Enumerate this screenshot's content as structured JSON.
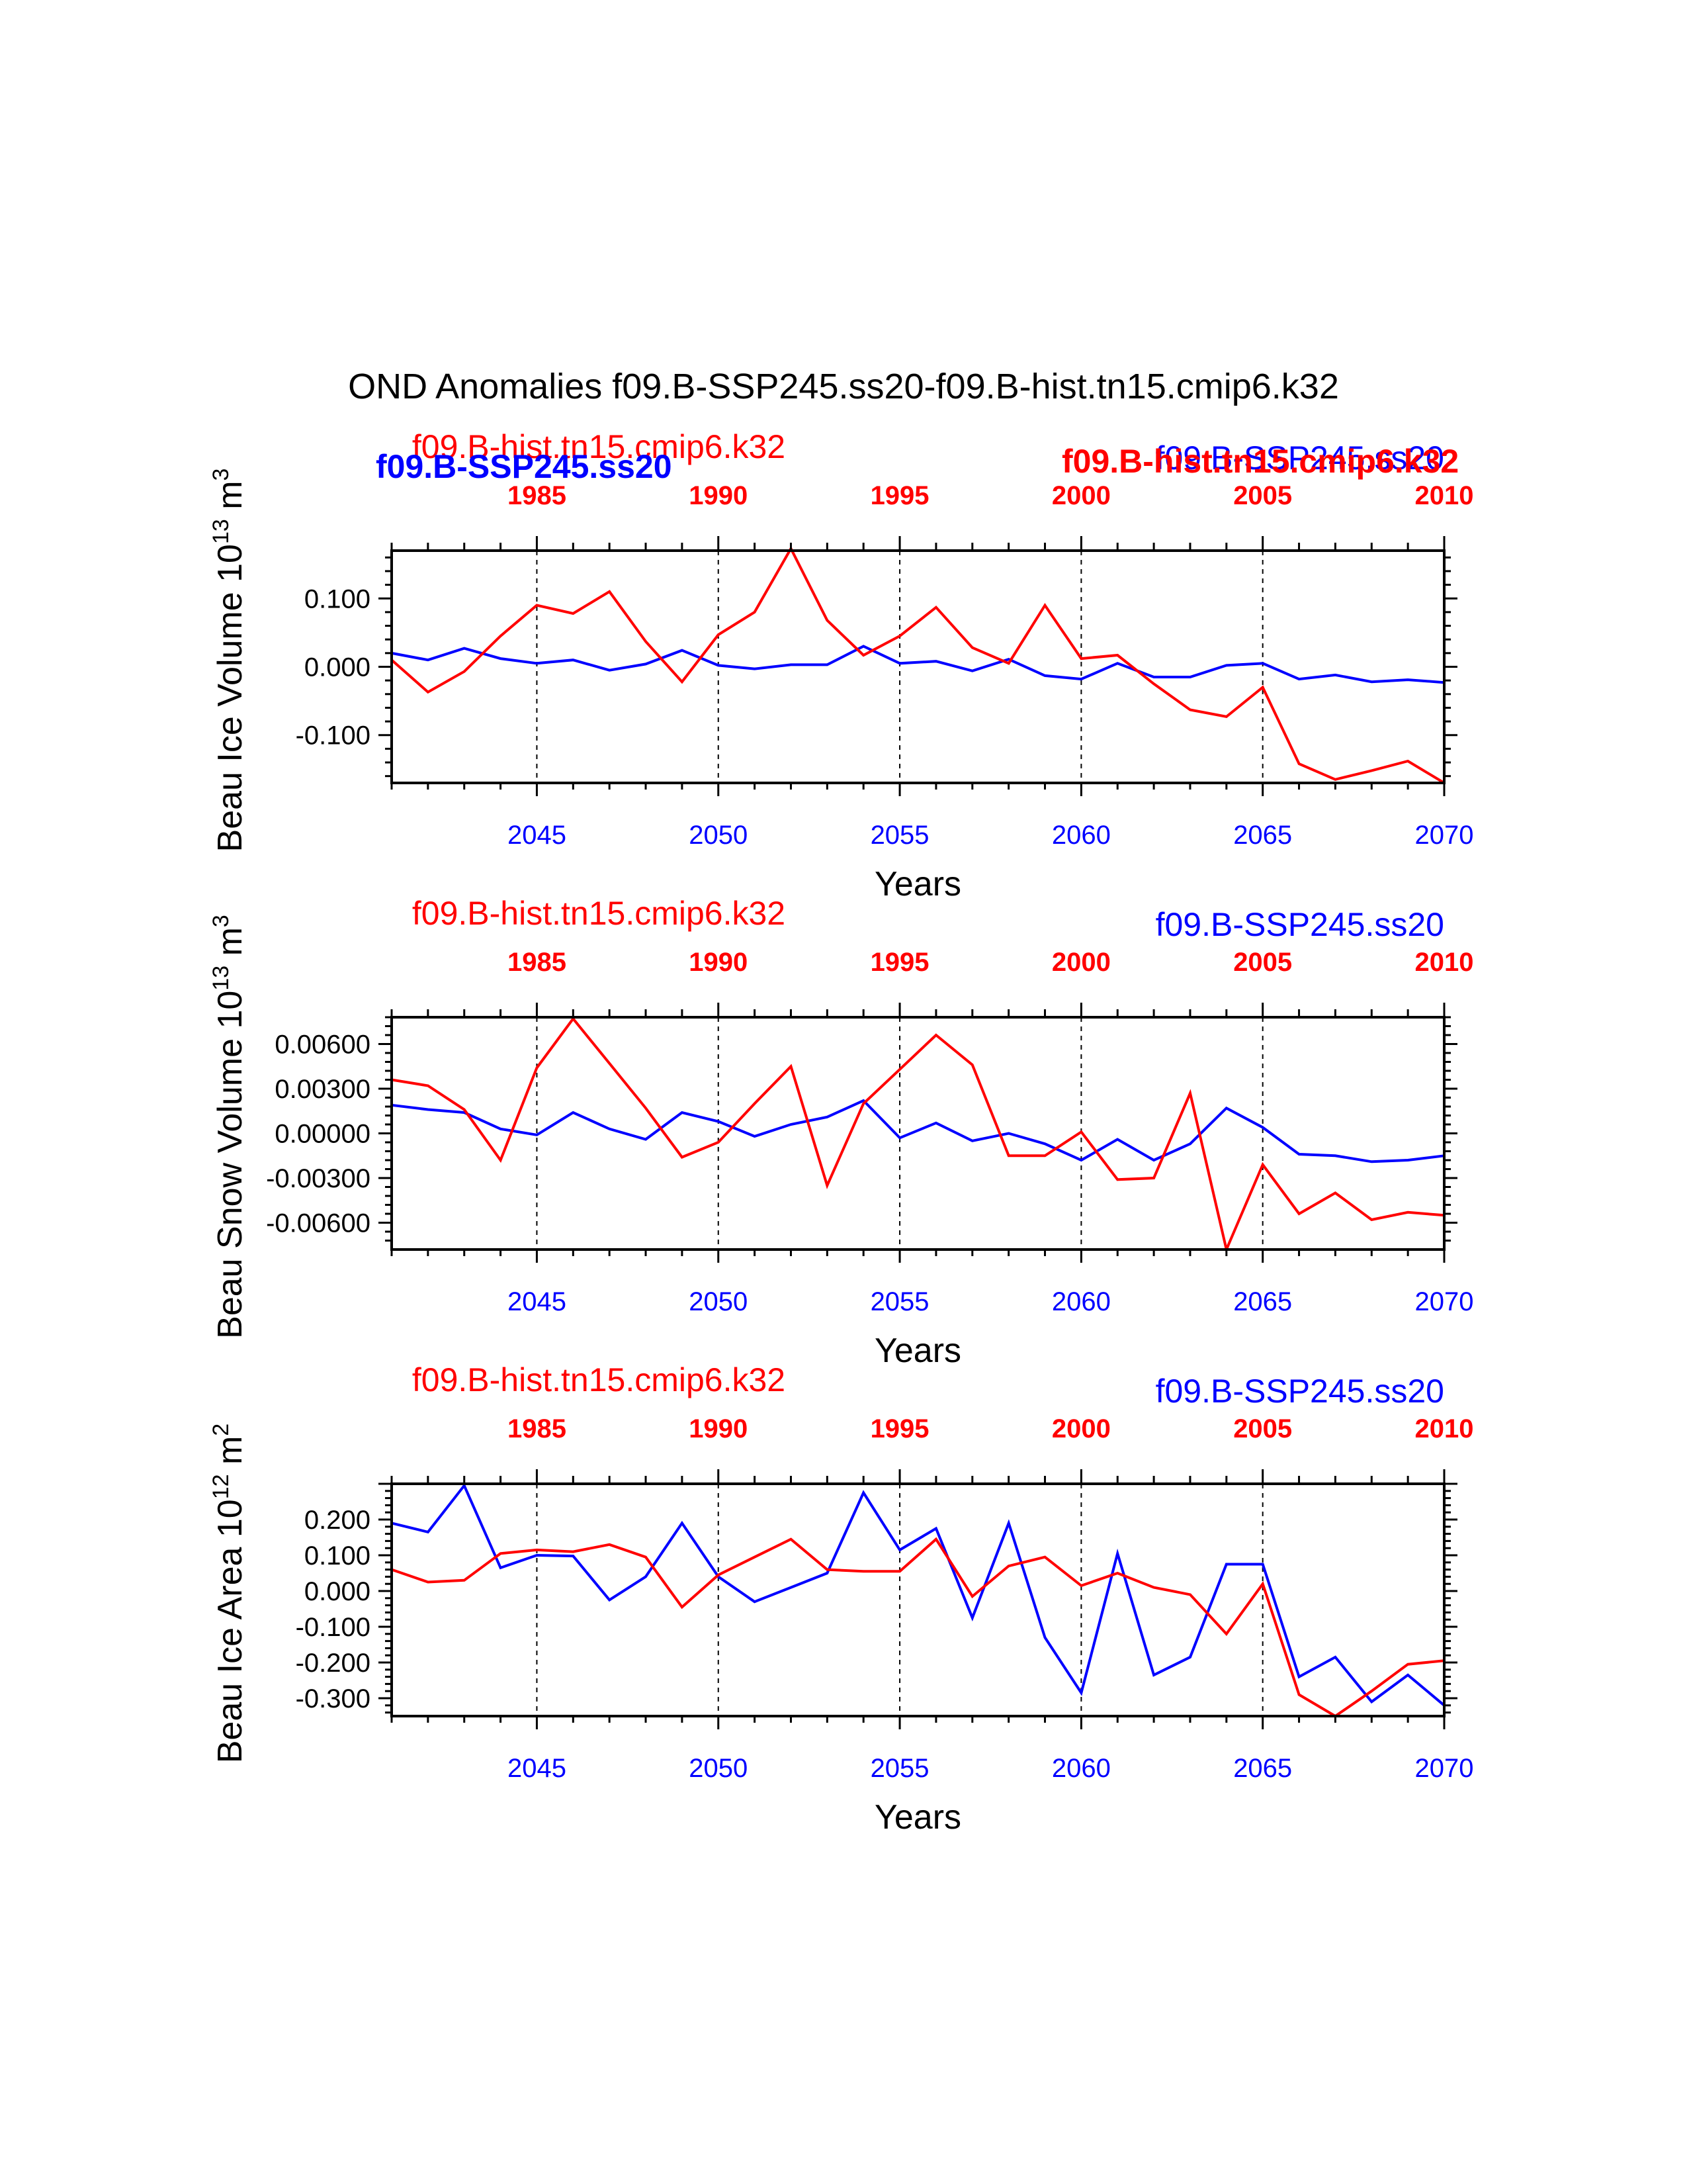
{
  "figure_title": "OND Anomalies f09.B-SSP245.ss20-f09.B-hist.tn15.cmip6.k32",
  "colors": {
    "ssp": "#0000ff",
    "hist": "#ff0000",
    "axis": "#000000"
  },
  "overlay_labels": {
    "top_left_bold_blue": "f09.B-SSP245.ss20",
    "top_right_bold_red": "f09.B-hist.tn15.cmip6.k32"
  },
  "chart_data": [
    {
      "type": "line",
      "panel": "ice-volume",
      "ylabel": "Beau Ice Volume 10",
      "ylabel_exp": "13",
      "ylabel_unit": " m",
      "ylabel_unit_exp": "3",
      "xlabel": "Years",
      "ylim": [
        -0.17,
        0.17
      ],
      "yticks": [
        -0.1,
        0.0,
        0.1
      ],
      "ytick_labels": [
        "-0.100",
        "0.000",
        "0.100"
      ],
      "x_bottom": {
        "range": [
          2041,
          2070
        ],
        "ticks": [
          2045,
          2050,
          2055,
          2060,
          2065,
          2070
        ],
        "labels": [
          "2045",
          "2050",
          "2055",
          "2060",
          "2065",
          "2070"
        ]
      },
      "x_top": {
        "range": [
          1981,
          2010
        ],
        "ticks": [
          1985,
          1990,
          1995,
          2000,
          2005,
          2010
        ],
        "labels": [
          "1985",
          "1990",
          "1995",
          "2000",
          "2005",
          "2010"
        ]
      },
      "gridlines_x": [
        2045,
        2050,
        2055,
        2060,
        2065
      ],
      "series": [
        {
          "name": "f09.B-SSP245.ss20",
          "color": "#0000ff",
          "x": [
            2041,
            2042,
            2043,
            2044,
            2045,
            2046,
            2047,
            2048,
            2049,
            2050,
            2051,
            2052,
            2053,
            2054,
            2055,
            2056,
            2057,
            2058,
            2059,
            2060,
            2061,
            2062,
            2063,
            2064,
            2065,
            2066,
            2067,
            2068,
            2069,
            2070
          ],
          "values": [
            0.02,
            0.01,
            0.027,
            0.012,
            0.005,
            0.01,
            -0.005,
            0.004,
            0.024,
            0.002,
            -0.003,
            0.003,
            0.003,
            0.03,
            0.005,
            0.008,
            -0.006,
            0.011,
            -0.013,
            -0.018,
            0.005,
            -0.015,
            -0.015,
            0.002,
            0.005,
            -0.018,
            -0.012,
            -0.022,
            -0.019,
            -0.023
          ]
        },
        {
          "name": "f09.B-hist.tn15.cmip6.k32",
          "color": "#ff0000",
          "x": [
            2041,
            2042,
            2043,
            2044,
            2045,
            2046,
            2047,
            2048,
            2049,
            2050,
            2051,
            2052,
            2053,
            2054,
            2055,
            2056,
            2057,
            2058,
            2059,
            2060,
            2061,
            2062,
            2063,
            2064,
            2065,
            2066,
            2067,
            2068,
            2069,
            2070
          ],
          "values": [
            0.01,
            -0.037,
            -0.007,
            0.045,
            0.09,
            0.078,
            0.11,
            0.037,
            -0.022,
            0.047,
            0.08,
            0.173,
            0.068,
            0.017,
            0.045,
            0.087,
            0.028,
            0.005,
            0.09,
            0.012,
            0.017,
            -0.025,
            -0.063,
            -0.073,
            -0.03,
            -0.142,
            -0.165,
            -0.152,
            -0.138,
            -0.17
          ]
        }
      ],
      "legend_left": "f09.B-hist.tn15.cmip6.k32",
      "legend_right": "f09.B-SSP245.ss20"
    },
    {
      "type": "line",
      "panel": "snow-volume",
      "ylabel": "Beau Snow Volume 10",
      "ylabel_exp": "13",
      "ylabel_unit": " m",
      "ylabel_unit_exp": "3",
      "xlabel": "Years",
      "ylim": [
        -0.0078,
        0.0078
      ],
      "yticks": [
        -0.006,
        -0.003,
        0.0,
        0.003,
        0.006
      ],
      "ytick_labels": [
        "-0.00600",
        "-0.00300",
        "0.00000",
        "0.00300",
        "0.00600"
      ],
      "x_bottom": {
        "range": [
          2041,
          2070
        ],
        "ticks": [
          2045,
          2050,
          2055,
          2060,
          2065,
          2070
        ],
        "labels": [
          "2045",
          "2050",
          "2055",
          "2060",
          "2065",
          "2070"
        ]
      },
      "x_top": {
        "range": [
          1981,
          2010
        ],
        "ticks": [
          1985,
          1990,
          1995,
          2000,
          2005,
          2010
        ],
        "labels": [
          "1985",
          "1990",
          "1995",
          "2000",
          "2005",
          "2010"
        ]
      },
      "gridlines_x": [
        2045,
        2050,
        2055,
        2060,
        2065
      ],
      "series": [
        {
          "name": "f09.B-SSP245.ss20",
          "color": "#0000ff",
          "x": [
            2041,
            2042,
            2043,
            2044,
            2045,
            2046,
            2047,
            2048,
            2049,
            2050,
            2051,
            2052,
            2053,
            2054,
            2055,
            2056,
            2057,
            2058,
            2059,
            2060,
            2061,
            2062,
            2063,
            2064,
            2065,
            2066,
            2067,
            2068,
            2069,
            2070
          ],
          "values": [
            0.0019,
            0.0016,
            0.0014,
            0.0003,
            -0.0001,
            0.0014,
            0.0003,
            -0.0004,
            0.0014,
            0.0008,
            -0.0002,
            0.0006,
            0.0011,
            0.0022,
            -0.0003,
            0.0007,
            -0.0005,
            0.0,
            -0.0007,
            -0.0018,
            -0.0004,
            -0.0018,
            -0.0007,
            0.0017,
            0.0004,
            -0.0014,
            -0.0015,
            -0.0019,
            -0.0018,
            -0.0015
          ]
        },
        {
          "name": "f09.B-hist.tn15.cmip6.k32",
          "color": "#ff0000",
          "x": [
            2041,
            2042,
            2043,
            2044,
            2045,
            2046,
            2047,
            2048,
            2049,
            2050,
            2051,
            2052,
            2053,
            2054,
            2055,
            2056,
            2057,
            2058,
            2059,
            2060,
            2061,
            2062,
            2063,
            2064,
            2065,
            2066,
            2067,
            2068,
            2069,
            2070
          ],
          "values": [
            0.0036,
            0.0032,
            0.0016,
            -0.0018,
            0.0044,
            0.0077,
            0.0047,
            0.0017,
            -0.0016,
            -0.0006,
            0.002,
            0.0045,
            -0.0035,
            0.002,
            0.0043,
            0.0066,
            0.0046,
            -0.0015,
            -0.0015,
            0.0001,
            -0.0031,
            -0.003,
            0.0027,
            -0.0078,
            -0.0021,
            -0.0054,
            -0.004,
            -0.0058,
            -0.0053,
            -0.0055
          ]
        }
      ],
      "legend_left": "f09.B-hist.tn15.cmip6.k32",
      "legend_right": "f09.B-SSP245.ss20"
    },
    {
      "type": "line",
      "panel": "ice-area",
      "ylabel": "Beau Ice Area 10",
      "ylabel_exp": "12",
      "ylabel_unit": " m",
      "ylabel_unit_exp": "2",
      "xlabel": "Years",
      "ylim": [
        -0.35,
        0.3
      ],
      "yticks": [
        -0.3,
        -0.2,
        -0.1,
        0.0,
        0.1,
        0.2
      ],
      "ytick_labels": [
        "-0.300",
        "-0.200",
        "-0.100",
        "0.000",
        "0.100",
        "0.200"
      ],
      "x_bottom": {
        "range": [
          2041,
          2070
        ],
        "ticks": [
          2045,
          2050,
          2055,
          2060,
          2065,
          2070
        ],
        "labels": [
          "2045",
          "2050",
          "2055",
          "2060",
          "2065",
          "2070"
        ]
      },
      "x_top": {
        "range": [
          1981,
          2010
        ],
        "ticks": [
          1985,
          1990,
          1995,
          2000,
          2005,
          2010
        ],
        "labels": [
          "1985",
          "1990",
          "1995",
          "2000",
          "2005",
          "2010"
        ]
      },
      "gridlines_x": [
        2045,
        2050,
        2055,
        2060,
        2065
      ],
      "series": [
        {
          "name": "f09.B-SSP245.ss20",
          "color": "#0000ff",
          "x": [
            2041,
            2042,
            2043,
            2044,
            2045,
            2046,
            2047,
            2048,
            2049,
            2050,
            2051,
            2052,
            2053,
            2054,
            2055,
            2056,
            2057,
            2058,
            2059,
            2060,
            2061,
            2062,
            2063,
            2064,
            2065,
            2066,
            2067,
            2068,
            2069,
            2070
          ],
          "values": [
            0.19,
            0.165,
            0.295,
            0.065,
            0.1,
            0.098,
            -0.025,
            0.04,
            0.19,
            0.04,
            -0.03,
            0.01,
            0.05,
            0.275,
            0.115,
            0.175,
            -0.075,
            0.19,
            -0.13,
            -0.285,
            0.105,
            -0.235,
            -0.185,
            0.075,
            0.075,
            -0.24,
            -0.185,
            -0.31,
            -0.235,
            -0.32
          ]
        },
        {
          "name": "f09.B-hist.tn15.cmip6.k32",
          "color": "#ff0000",
          "x": [
            2041,
            2042,
            2043,
            2044,
            2045,
            2046,
            2047,
            2048,
            2049,
            2050,
            2051,
            2052,
            2053,
            2054,
            2055,
            2056,
            2057,
            2058,
            2059,
            2060,
            2061,
            2062,
            2063,
            2064,
            2065,
            2066,
            2067,
            2068,
            2069,
            2070
          ],
          "values": [
            0.06,
            0.025,
            0.03,
            0.105,
            0.115,
            0.11,
            0.13,
            0.095,
            -0.045,
            0.045,
            0.095,
            0.145,
            0.06,
            0.055,
            0.055,
            0.145,
            -0.015,
            0.07,
            0.095,
            0.015,
            0.05,
            0.01,
            -0.01,
            -0.12,
            0.02,
            -0.29,
            -0.35,
            -0.28,
            -0.205,
            -0.195
          ]
        }
      ],
      "legend_left": "f09.B-hist.tn15.cmip6.k32",
      "legend_right": "f09.B-SSP245.ss20"
    }
  ]
}
